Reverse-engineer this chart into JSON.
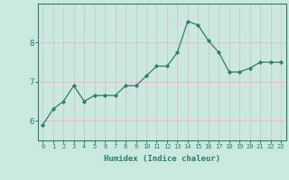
{
  "x": [
    0,
    1,
    2,
    3,
    4,
    5,
    6,
    7,
    8,
    9,
    10,
    11,
    12,
    13,
    14,
    15,
    16,
    17,
    18,
    19,
    20,
    21,
    22,
    23
  ],
  "y": [
    5.9,
    6.3,
    6.5,
    6.9,
    6.5,
    6.65,
    6.65,
    6.65,
    6.9,
    6.9,
    7.15,
    7.4,
    7.4,
    7.75,
    8.55,
    8.45,
    8.05,
    7.75,
    7.25,
    7.25,
    7.35,
    7.5,
    7.5,
    7.5
  ],
  "line_color": "#2E7D6B",
  "marker_color": "#2E7D6B",
  "bg_color": "#C8E8E0",
  "grid_major_color": "#E8B4B4",
  "grid_minor_color": "#D8E8E4",
  "xlabel": "Humidex (Indice chaleur)",
  "yticks": [
    6,
    7,
    8
  ],
  "ylim": [
    5.5,
    9.0
  ],
  "xlim": [
    -0.5,
    23.5
  ],
  "tick_color": "#2E7D6B",
  "label_color": "#2E7D6B",
  "axis_color": "#2E7D6B",
  "xtick_fontsize": 5.0,
  "ytick_fontsize": 6.5,
  "xlabel_fontsize": 6.5
}
